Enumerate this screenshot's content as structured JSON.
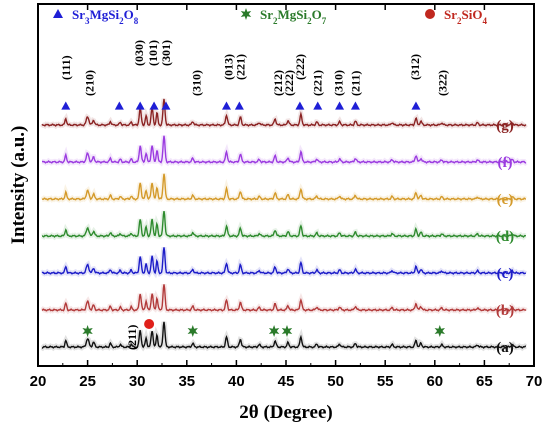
{
  "chart_data": {
    "type": "line",
    "xlabel": "2θ (Degree)",
    "ylabel": "Intensity (a.u.)",
    "xlim": [
      20,
      70
    ],
    "x_ticks": [
      "20",
      "25",
      "30",
      "35",
      "40",
      "45",
      "50",
      "55",
      "60",
      "65",
      "70"
    ],
    "grid": false,
    "legend": [
      {
        "name": "Sr3MgSi2O8",
        "display": [
          "Sr",
          "3",
          "MgSi",
          "2",
          "O",
          "8"
        ],
        "marker": "triangle",
        "color": "#1f1fd6"
      },
      {
        "name": "Sr2MgSi2O7",
        "display": [
          "Sr",
          "2",
          "MgSi",
          "2",
          "O",
          "7"
        ],
        "marker": "star",
        "color": "#2a7a2a"
      },
      {
        "name": "Sr2SiO4",
        "display": [
          "Sr",
          "2",
          "SiO",
          "4"
        ],
        "marker": "circle",
        "color": "#c0281f"
      }
    ],
    "series": [
      {
        "name": "(a)",
        "color": "#111111",
        "offset": 0
      },
      {
        "name": "(b)",
        "color": "#b23a3a",
        "offset": 1
      },
      {
        "name": "(c)",
        "color": "#1c1cc8",
        "offset": 2
      },
      {
        "name": "(d)",
        "color": "#2e8b2e",
        "offset": 3
      },
      {
        "name": "(e)",
        "color": "#d49a2a",
        "offset": 4
      },
      {
        "name": "(f)",
        "color": "#9b3be0",
        "offset": 5
      },
      {
        "name": "(g)",
        "color": "#8b2323",
        "offset": 6
      }
    ],
    "peaks": [
      {
        "x": 22.8,
        "h": 0.22,
        "w": 0.12
      },
      {
        "x": 25.0,
        "h": 0.28,
        "w": 0.18
      },
      {
        "x": 25.6,
        "h": 0.16,
        "w": 0.15
      },
      {
        "x": 27.3,
        "h": 0.12,
        "w": 0.12
      },
      {
        "x": 28.3,
        "h": 0.09,
        "w": 0.12
      },
      {
        "x": 29.4,
        "h": 0.1,
        "w": 0.12
      },
      {
        "x": 30.3,
        "h": 0.55,
        "w": 0.14
      },
      {
        "x": 30.9,
        "h": 0.3,
        "w": 0.12
      },
      {
        "x": 31.5,
        "h": 0.55,
        "w": 0.14
      },
      {
        "x": 32.0,
        "h": 0.4,
        "w": 0.12
      },
      {
        "x": 32.7,
        "h": 0.85,
        "w": 0.14
      },
      {
        "x": 35.6,
        "h": 0.12,
        "w": 0.14
      },
      {
        "x": 39.0,
        "h": 0.33,
        "w": 0.14
      },
      {
        "x": 40.4,
        "h": 0.26,
        "w": 0.14
      },
      {
        "x": 42.3,
        "h": 0.08,
        "w": 0.14
      },
      {
        "x": 43.9,
        "h": 0.2,
        "w": 0.14
      },
      {
        "x": 45.2,
        "h": 0.14,
        "w": 0.14
      },
      {
        "x": 46.5,
        "h": 0.34,
        "w": 0.14
      },
      {
        "x": 48.1,
        "h": 0.1,
        "w": 0.14
      },
      {
        "x": 50.4,
        "h": 0.1,
        "w": 0.14
      },
      {
        "x": 52.0,
        "h": 0.12,
        "w": 0.14
      },
      {
        "x": 55.7,
        "h": 0.08,
        "w": 0.14
      },
      {
        "x": 58.1,
        "h": 0.22,
        "w": 0.14
      },
      {
        "x": 58.6,
        "h": 0.12,
        "w": 0.14
      },
      {
        "x": 60.7,
        "h": 0.07,
        "w": 0.14
      },
      {
        "x": 64.3,
        "h": 0.07,
        "w": 0.14
      },
      {
        "x": 67.8,
        "h": 0.08,
        "w": 0.14
      }
    ],
    "peak_labels": [
      {
        "text": "(111)",
        "x": 22.8,
        "level": 1
      },
      {
        "text": "(210)",
        "x": 25.2,
        "level": 2
      },
      {
        "text": "(030)",
        "x": 30.2,
        "level": 0
      },
      {
        "text": "(101)",
        "x": 31.6,
        "level": 0
      },
      {
        "text": "(301)",
        "x": 32.9,
        "level": 0
      },
      {
        "text": "(310)",
        "x": 36.0,
        "level": 2
      },
      {
        "text": "(013)",
        "x": 39.2,
        "level": 1
      },
      {
        "text": "(221)",
        "x": 40.4,
        "level": 1
      },
      {
        "text": "(212)",
        "x": 44.2,
        "level": 2
      },
      {
        "text": "(222)",
        "x": 45.3,
        "level": 2
      },
      {
        "text": "(222)",
        "x": 46.4,
        "level": 1
      },
      {
        "text": "(221)",
        "x": 48.2,
        "level": 2
      },
      {
        "text": "(310)",
        "x": 50.3,
        "level": 2
      },
      {
        "text": "(211)",
        "x": 52.0,
        "level": 2
      },
      {
        "text": "(312)",
        "x": 58.0,
        "level": 1
      },
      {
        "text": "(322)",
        "x": 60.8,
        "level": 2
      }
    ],
    "peak_markers_g": [
      22.8,
      28.2,
      30.3,
      31.7,
      32.9,
      39.0,
      40.3,
      46.4,
      48.2,
      50.4,
      52.0,
      58.1
    ],
    "peak_markers_a": [
      {
        "x": 25.0,
        "marker": "star"
      },
      {
        "x": 31.2,
        "marker": "circle"
      },
      {
        "x": 35.6,
        "marker": "star"
      },
      {
        "x": 43.8,
        "marker": "star"
      },
      {
        "x": 45.1,
        "marker": "star"
      },
      {
        "x": 60.5,
        "marker": "star"
      }
    ],
    "annotation_a": {
      "text": "(211)",
      "x": 29.5
    }
  }
}
